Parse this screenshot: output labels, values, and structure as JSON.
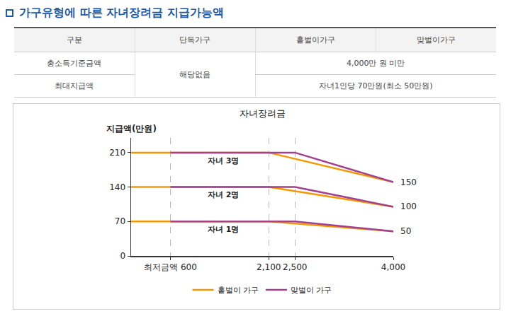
{
  "header": {
    "title": "가구유형에 따른 자녀장려금 지급가능액"
  },
  "table": {
    "columns": [
      "구분",
      "단독가구",
      "홑벌이가구",
      "맞벌이가구"
    ],
    "rows": [
      [
        {
          "text": "총소득기준금액"
        },
        {
          "text": "해당없음",
          "rowspan": 2
        },
        {
          "text": "4,000만 원 미만",
          "colspan": 2
        }
      ],
      [
        {
          "text": "최대지급액"
        },
        {
          "text": "자녀1인당 70만원(최소 50만원)",
          "colspan": 2
        }
      ]
    ]
  },
  "chart_data": {
    "type": "line",
    "title": "자녀장려금",
    "y_label": "지급액(만원)",
    "xlim": [
      0,
      4000
    ],
    "xticks": [
      {
        "value": 600,
        "label": "최저금액 600"
      },
      {
        "value": 2100,
        "label": "2,100"
      },
      {
        "value": 2500,
        "label": "2,500"
      },
      {
        "value": 4000,
        "label": "4,000"
      }
    ],
    "ylim": [
      0,
      240
    ],
    "yticks": [
      0,
      70,
      140,
      210
    ],
    "grid": "x",
    "legend": "bottom",
    "series": [
      {
        "name": "홑벌이 가구",
        "color": "#f39800",
        "x": [
          0,
          2100,
          4000
        ],
        "values": [
          210,
          210,
          150
        ]
      },
      {
        "name": "홑벌이 가구",
        "color": "#f39800",
        "x": [
          0,
          2100,
          4000
        ],
        "values": [
          140,
          140,
          100
        ]
      },
      {
        "name": "홑벌이 가구",
        "color": "#f39800",
        "x": [
          0,
          2100,
          4000
        ],
        "values": [
          70,
          70,
          50
        ]
      },
      {
        "name": "맞벌이 가구",
        "color": "#a3408f",
        "x": [
          600,
          2500,
          4000
        ],
        "values": [
          210,
          210,
          150
        ]
      },
      {
        "name": "맞벌이 가구",
        "color": "#a3408f",
        "x": [
          600,
          2500,
          4000
        ],
        "values": [
          140,
          140,
          100
        ]
      },
      {
        "name": "맞벌이 가구",
        "color": "#a3408f",
        "x": [
          600,
          2500,
          4000
        ],
        "values": [
          70,
          70,
          50
        ]
      }
    ],
    "annotations": [
      {
        "x": 1150,
        "y": 206,
        "text": "자녀 3명"
      },
      {
        "x": 1150,
        "y": 136,
        "text": "자녀 2명"
      },
      {
        "x": 1150,
        "y": 66,
        "text": "자녀 1명"
      },
      {
        "x": 4000,
        "y": 150,
        "text": "150"
      },
      {
        "x": 4000,
        "y": 100,
        "text": "100"
      },
      {
        "x": 4000,
        "y": 50,
        "text": "50"
      }
    ]
  }
}
